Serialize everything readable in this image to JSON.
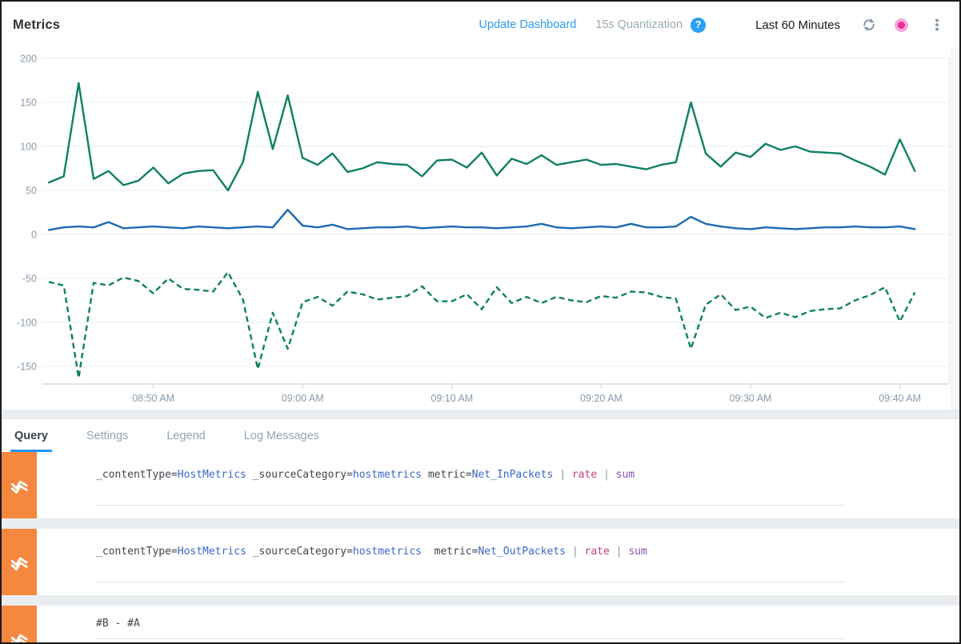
{
  "header": {
    "title": "Metrics",
    "update_dashboard_label": "Update Dashboard",
    "quantization_label": "15s Quantization",
    "help_icon": "help-icon",
    "time_range_label": "Last 60 Minutes",
    "refresh_icon": "refresh-icon",
    "live_dot_icon": "record-dot-icon",
    "menu_icon": "kebab-menu-icon",
    "question_mark": "?"
  },
  "colors": {
    "link_blue": "#2d9cf4",
    "tab_active_underline": "#2196f3",
    "series_teal": "#0f7f66",
    "series_blue": "#1b6ab1",
    "row_badge_orange": "#F5873E",
    "live_dot_pink": "#ee2d9b",
    "live_dot_ring": "#f6a9d8",
    "query_value_blue": "#3b68c5",
    "query_rate_pink": "#c2417e",
    "query_sum_purple": "#8951b5",
    "axis_label_gray": "#8a9aae"
  },
  "tabs": [
    {
      "label": "Query",
      "active": true
    },
    {
      "label": "Settings",
      "active": false
    },
    {
      "label": "Legend",
      "active": false
    },
    {
      "label": "Log Messages",
      "active": false
    }
  ],
  "chart_data": {
    "type": "line",
    "title": "",
    "xlabel": "",
    "ylabel": "",
    "x_tick_labels": [
      "08:50 AM",
      "09:00 AM",
      "09:10 AM",
      "09:20 AM",
      "09:30 AM",
      "09:40 AM"
    ],
    "x_tick_minutes": [
      7,
      17,
      27,
      37,
      47,
      57
    ],
    "point_interval_minutes": 1,
    "y_ticks": [
      200,
      150,
      100,
      50,
      0,
      -50,
      -100,
      -150
    ],
    "ylim": [
      -170,
      210
    ],
    "grid": true,
    "legend": "none",
    "series": [
      {
        "name": "_contentType=HostMetrics _sourceCategory=hostmetrics metric=Net_InPackets | rate | sum",
        "color": "#0f7f66",
        "style": "solid",
        "values": [
          59,
          66,
          172,
          63,
          72,
          56,
          61,
          76,
          58,
          69,
          72,
          73,
          50,
          82,
          162,
          97,
          158,
          87,
          79,
          92,
          71,
          75,
          82,
          80,
          79,
          66,
          84,
          85,
          76,
          93,
          67,
          86,
          80,
          90,
          79,
          82,
          85,
          79,
          80,
          77,
          74,
          79,
          82,
          150,
          92,
          77,
          93,
          88,
          103,
          96,
          100,
          94,
          93,
          92,
          84,
          77,
          68,
          108,
          72
        ]
      },
      {
        "name": "_contentType=HostMetrics _sourceCategory=hostmetrics  metric=Net_OutPackets | rate | sum",
        "color": "#1b6ab1",
        "style": "solid",
        "values": [
          5,
          8,
          9,
          8,
          14,
          7,
          8,
          9,
          8,
          7,
          9,
          8,
          7,
          8,
          9,
          8,
          28,
          10,
          8,
          11,
          6,
          7,
          8,
          8,
          9,
          7,
          8,
          9,
          8,
          8,
          7,
          8,
          9,
          12,
          8,
          7,
          8,
          9,
          8,
          12,
          8,
          8,
          9,
          20,
          12,
          9,
          7,
          6,
          8,
          7,
          6,
          7,
          8,
          8,
          9,
          8,
          8,
          9,
          6
        ]
      },
      {
        "name": "#B - #A",
        "color": "#0f7f66",
        "style": "dashed",
        "values": [
          -54,
          -58,
          -163,
          -55,
          -58,
          -49,
          -53,
          -67,
          -50,
          -62,
          -63,
          -65,
          -43,
          -74,
          -153,
          -89,
          -130,
          -77,
          -71,
          -81,
          -65,
          -68,
          -74,
          -72,
          -70,
          -59,
          -76,
          -76,
          -68,
          -85,
          -60,
          -78,
          -71,
          -78,
          -71,
          -75,
          -77,
          -70,
          -72,
          -65,
          -66,
          -71,
          -73,
          -130,
          -80,
          -68,
          -86,
          -82,
          -95,
          -89,
          -94,
          -87,
          -85,
          -84,
          -75,
          -69,
          -60,
          -99,
          -66
        ]
      }
    ]
  },
  "queries": [
    {
      "icon": "metrics-line-icon",
      "segments": [
        {
          "text": "_contentType=",
          "type": "key"
        },
        {
          "text": "HostMetrics",
          "type": "value"
        },
        {
          "text": " _sourceCategory=",
          "type": "key"
        },
        {
          "text": "hostmetrics",
          "type": "value"
        },
        {
          "text": " metric=",
          "type": "key"
        },
        {
          "text": "Net_InPackets",
          "type": "value"
        },
        {
          "text": " | ",
          "type": "pipe"
        },
        {
          "text": "rate",
          "type": "op-rate"
        },
        {
          "text": " | ",
          "type": "pipe"
        },
        {
          "text": "sum",
          "type": "op-sum"
        }
      ]
    },
    {
      "icon": "metrics-line-icon",
      "segments": [
        {
          "text": "_contentType=",
          "type": "key"
        },
        {
          "text": "HostMetrics",
          "type": "value"
        },
        {
          "text": " _sourceCategory=",
          "type": "key"
        },
        {
          "text": "hostmetrics",
          "type": "value"
        },
        {
          "text": "  metric=",
          "type": "key"
        },
        {
          "text": "Net_OutPackets",
          "type": "value"
        },
        {
          "text": " | ",
          "type": "pipe"
        },
        {
          "text": "rate",
          "type": "op-rate"
        },
        {
          "text": " | ",
          "type": "pipe"
        },
        {
          "text": "sum",
          "type": "op-sum"
        }
      ]
    },
    {
      "icon": "metrics-line-icon",
      "segments": [
        {
          "text": "#B - #A",
          "type": "plain"
        }
      ]
    }
  ]
}
